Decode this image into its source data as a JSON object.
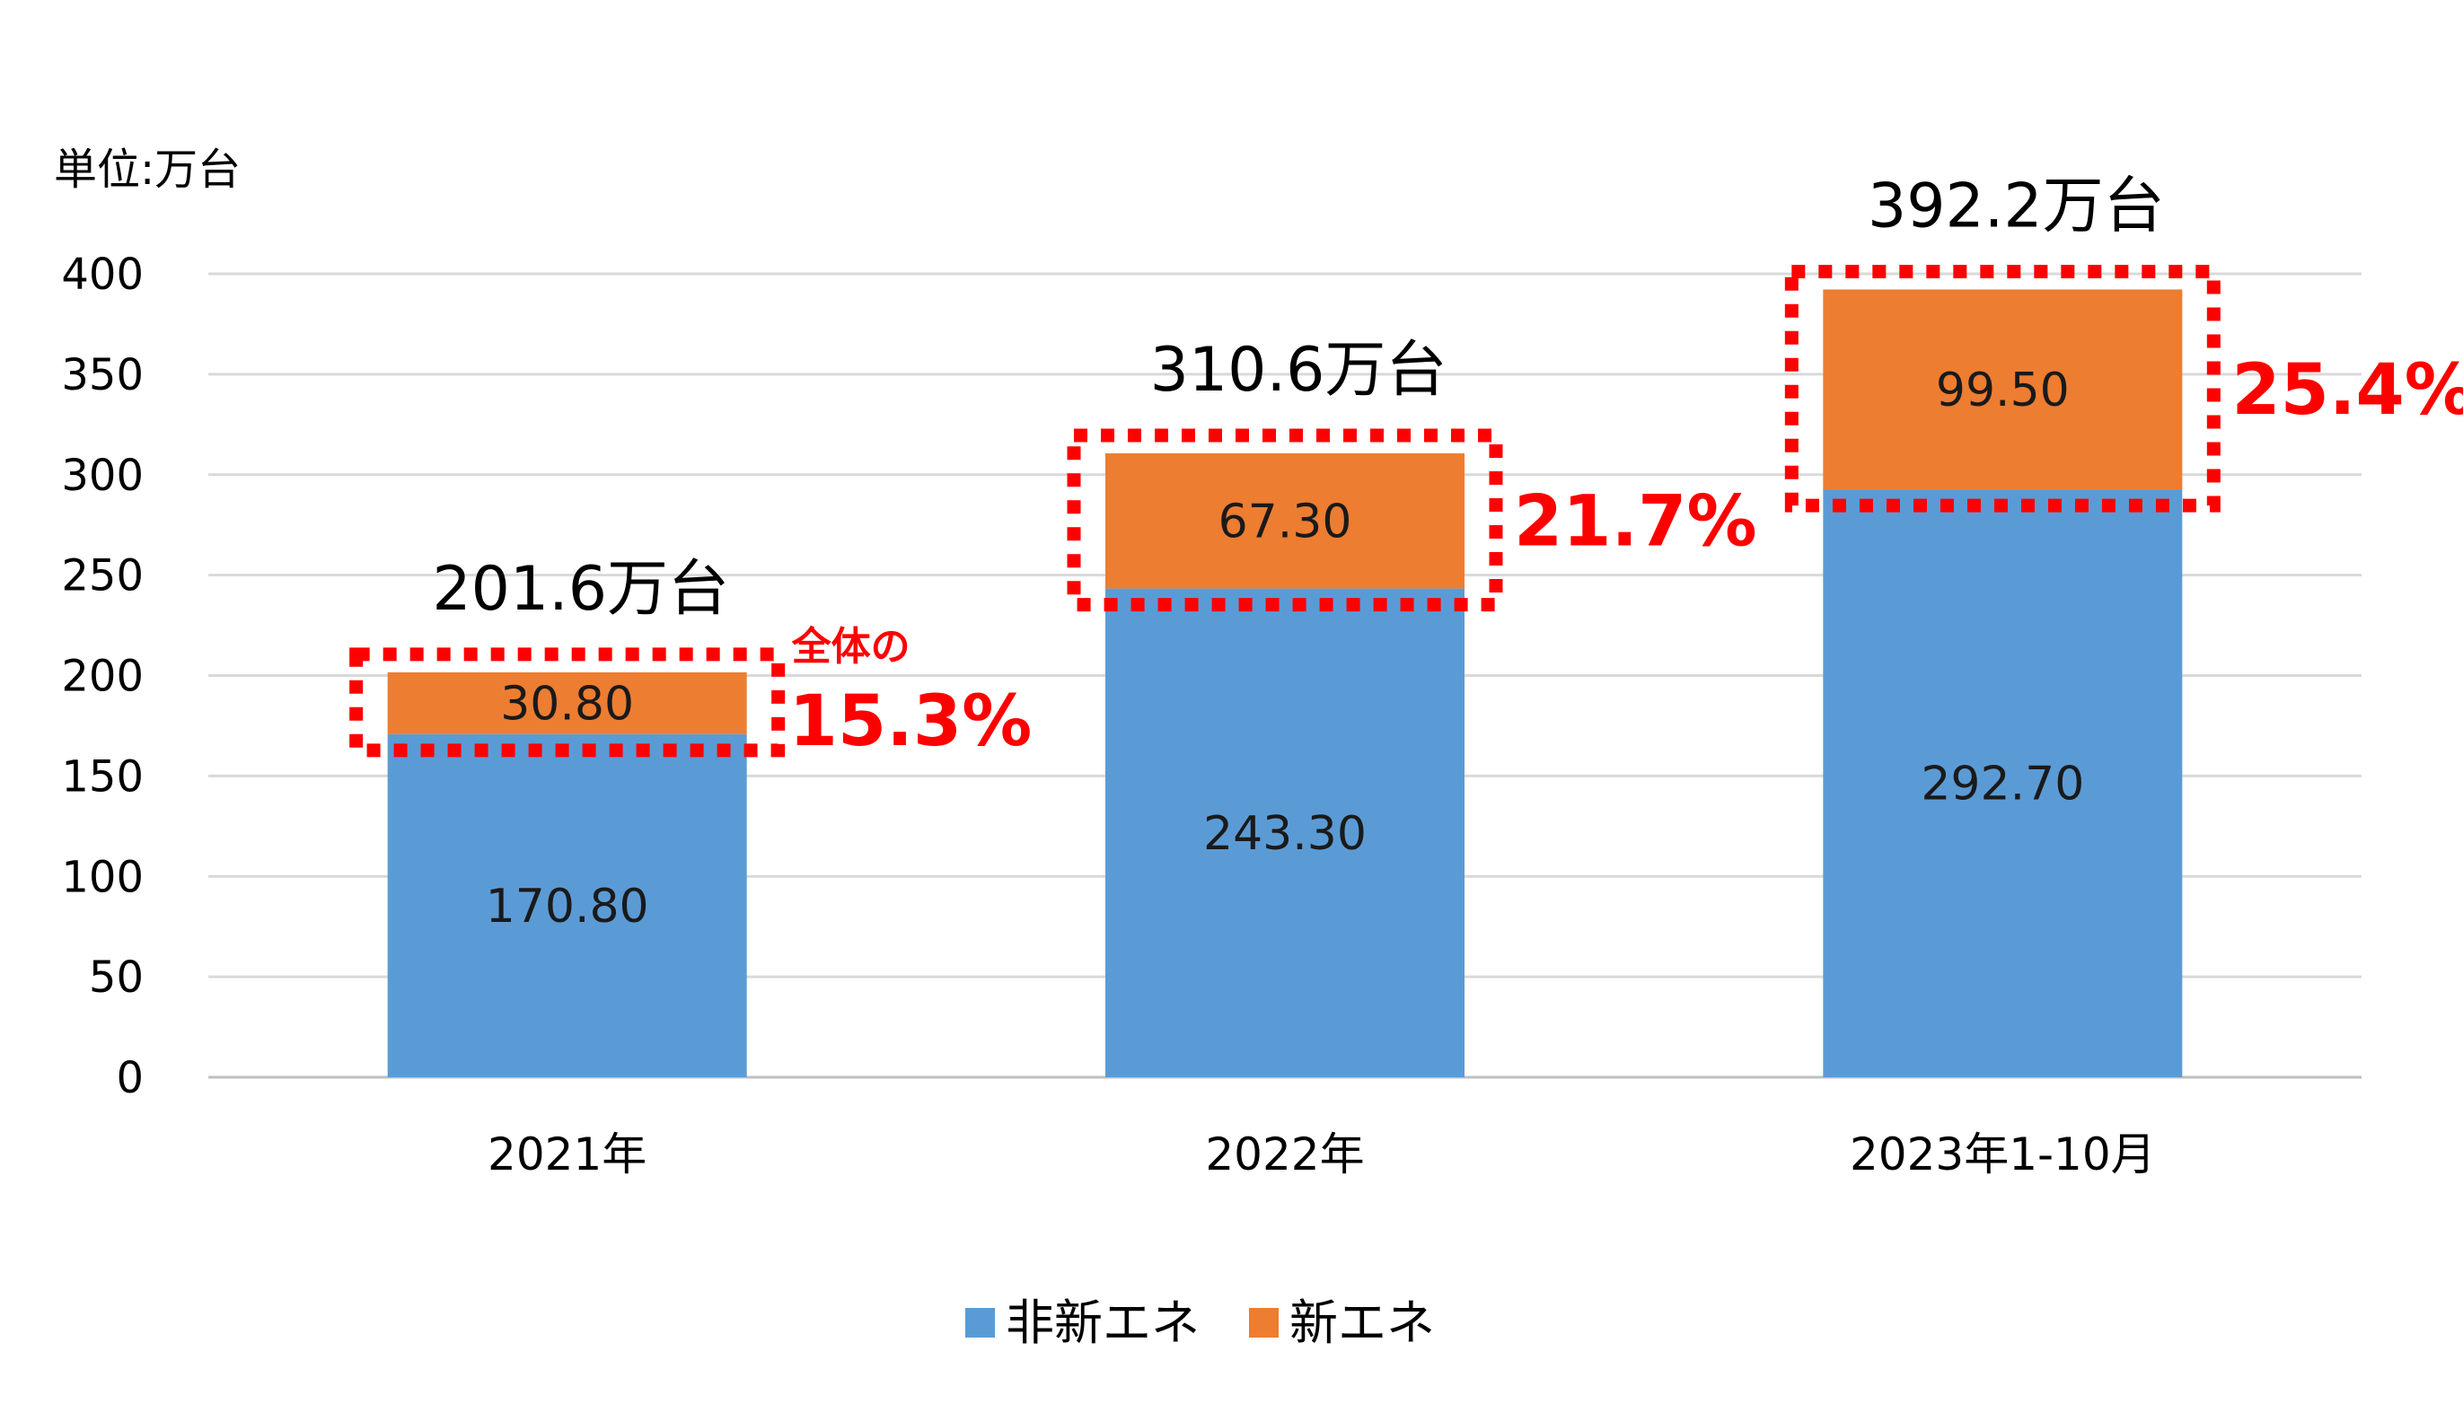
{
  "chart_data": {
    "type": "bar",
    "stacked": true,
    "unit_label": "単位:万台",
    "categories": [
      "2021年",
      "2022年",
      "2023年1-10月"
    ],
    "series": [
      {
        "name": "非新エネ",
        "color": "#5b9bd5",
        "values": [
          170.8,
          243.3,
          292.7
        ],
        "labels": [
          "170.80",
          "243.30",
          "292.70"
        ]
      },
      {
        "name": "新エネ",
        "color": "#ed7d31",
        "values": [
          30.8,
          67.3,
          99.5
        ],
        "labels": [
          "30.80",
          "67.30",
          "99.50"
        ]
      }
    ],
    "totals": [
      "201.6万台",
      "310.6万台",
      "392.2万台"
    ],
    "share_prefix": "全体の",
    "shares": [
      "15.3%",
      "21.7%",
      "25.4%"
    ],
    "highlight_color": "#ff0000",
    "ylim": [
      0,
      400
    ],
    "yticks": [
      0,
      50,
      100,
      150,
      200,
      250,
      300,
      350,
      400
    ],
    "grid": true,
    "legend_position": "bottom"
  }
}
